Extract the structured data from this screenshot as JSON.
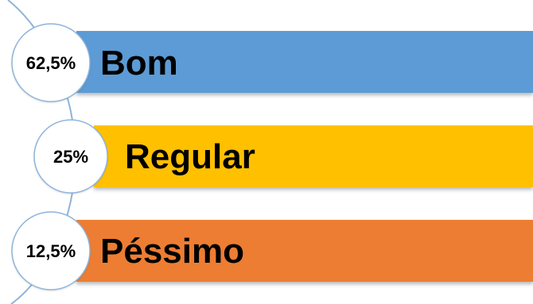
{
  "chart_data": {
    "type": "bar",
    "categories": [
      "Bom",
      "Regular",
      "Péssimo"
    ],
    "values": [
      62.5,
      25,
      12.5
    ],
    "value_labels": [
      "62,5%",
      "25%",
      "12,5%"
    ],
    "colors": [
      "#5B9BD5",
      "#FFC000",
      "#ED7D31"
    ],
    "circle_border_color": "#8FB4D9",
    "arc_color": "#8FB4D9"
  }
}
